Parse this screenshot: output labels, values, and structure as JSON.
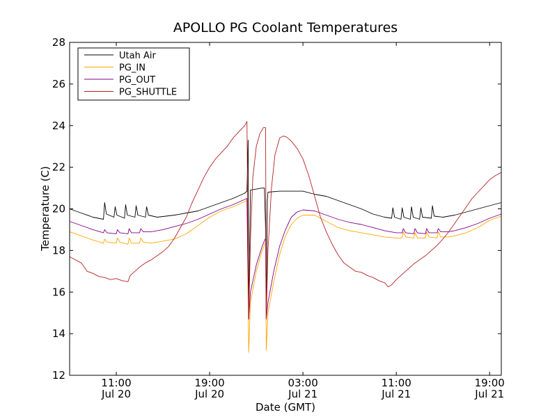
{
  "chart_data": {
    "type": "line",
    "title": "APOLLO PG Coolant Temperatures",
    "xlabel": "Date (GMT)",
    "ylabel": "Temperature (C)",
    "x_unit": "hours since Jul 20 06:00 GMT",
    "xlim": [
      0,
      37
    ],
    "ylim": [
      12,
      28
    ],
    "yticks": [
      12,
      14,
      16,
      18,
      20,
      22,
      24,
      26,
      28
    ],
    "xticks": [
      {
        "x": 4,
        "line1": "11:00",
        "line2": "Jul 20"
      },
      {
        "x": 12,
        "line1": "19:00",
        "line2": "Jul 20"
      },
      {
        "x": 20,
        "line1": "03:00",
        "line2": "Jul 21"
      },
      {
        "x": 28,
        "line1": "11:00",
        "line2": "Jul 21"
      },
      {
        "x": 36,
        "line1": "19:00",
        "line2": "Jul 21"
      }
    ],
    "legend_position": "top-left",
    "series": [
      {
        "name": "Utah Air",
        "color": "#000000",
        "points": [
          [
            0,
            20.0
          ],
          [
            1,
            19.8
          ],
          [
            2,
            19.6
          ],
          [
            2.9,
            19.5
          ],
          [
            3.0,
            20.3
          ],
          [
            3.15,
            19.75
          ],
          [
            3.8,
            19.6
          ],
          [
            3.9,
            20.1
          ],
          [
            4.05,
            19.7
          ],
          [
            4.7,
            19.55
          ],
          [
            4.8,
            20.2
          ],
          [
            4.95,
            19.7
          ],
          [
            5.6,
            19.6
          ],
          [
            5.7,
            20.15
          ],
          [
            5.85,
            19.7
          ],
          [
            6.5,
            19.6
          ],
          [
            6.6,
            20.1
          ],
          [
            6.75,
            19.7
          ],
          [
            7.5,
            19.6
          ],
          [
            9,
            19.7
          ],
          [
            10,
            19.8
          ],
          [
            11,
            19.9
          ],
          [
            12,
            20.1
          ],
          [
            13,
            20.3
          ],
          [
            14,
            20.5
          ],
          [
            15,
            20.75
          ],
          [
            15.2,
            20.85
          ],
          [
            15.3,
            23.3
          ],
          [
            15.35,
            14.7
          ],
          [
            15.5,
            20.9
          ],
          [
            16.5,
            21.0
          ],
          [
            16.7,
            21.0
          ],
          [
            16.8,
            19.0
          ],
          [
            16.85,
            14.7
          ],
          [
            16.95,
            20.4
          ],
          [
            17,
            20.8
          ],
          [
            18,
            20.85
          ],
          [
            19,
            20.85
          ],
          [
            20,
            20.85
          ],
          [
            21,
            20.7
          ],
          [
            22,
            20.6
          ],
          [
            23,
            20.4
          ],
          [
            24,
            20.2
          ],
          [
            25,
            20.0
          ],
          [
            26,
            19.75
          ],
          [
            27,
            19.6
          ],
          [
            27.6,
            19.55
          ],
          [
            27.7,
            20.05
          ],
          [
            27.85,
            19.6
          ],
          [
            28.4,
            19.5
          ],
          [
            28.5,
            20.05
          ],
          [
            28.65,
            19.6
          ],
          [
            29.2,
            19.5
          ],
          [
            29.3,
            20.1
          ],
          [
            29.45,
            19.6
          ],
          [
            30,
            19.5
          ],
          [
            30.1,
            20.05
          ],
          [
            30.25,
            19.6
          ],
          [
            31,
            19.55
          ],
          [
            31.1,
            20.15
          ],
          [
            31.25,
            19.65
          ],
          [
            32,
            19.6
          ],
          [
            33,
            19.7
          ],
          [
            34,
            19.85
          ],
          [
            35,
            20.0
          ],
          [
            36,
            20.15
          ],
          [
            37,
            20.3
          ]
        ]
      },
      {
        "name": "PG_IN",
        "color": "#FFA500",
        "points": [
          [
            0,
            18.9
          ],
          [
            1,
            18.7
          ],
          [
            2,
            18.5
          ],
          [
            2.9,
            18.35
          ],
          [
            3.0,
            18.55
          ],
          [
            3.2,
            18.4
          ],
          [
            4,
            18.35
          ],
          [
            4.1,
            18.6
          ],
          [
            4.3,
            18.4
          ],
          [
            5,
            18.3
          ],
          [
            5.1,
            18.6
          ],
          [
            5.3,
            18.35
          ],
          [
            6,
            18.35
          ],
          [
            6.1,
            18.6
          ],
          [
            6.3,
            18.4
          ],
          [
            7,
            18.35
          ],
          [
            8,
            18.45
          ],
          [
            9,
            18.55
          ],
          [
            10,
            18.8
          ],
          [
            11,
            19.2
          ],
          [
            12,
            19.6
          ],
          [
            13,
            19.9
          ],
          [
            14,
            20.1
          ],
          [
            15,
            20.35
          ],
          [
            15.2,
            20.4
          ],
          [
            15.35,
            13.1
          ],
          [
            15.5,
            15.5
          ],
          [
            16,
            17.0
          ],
          [
            16.5,
            18.0
          ],
          [
            16.8,
            18.4
          ],
          [
            16.85,
            13.2
          ],
          [
            17,
            15.0
          ],
          [
            17.5,
            16.5
          ],
          [
            18,
            17.8
          ],
          [
            18.5,
            18.7
          ],
          [
            19,
            19.25
          ],
          [
            19.5,
            19.55
          ],
          [
            20,
            19.7
          ],
          [
            21,
            19.7
          ],
          [
            22,
            19.4
          ],
          [
            23,
            19.1
          ],
          [
            24,
            18.95
          ],
          [
            25,
            18.85
          ],
          [
            26,
            18.75
          ],
          [
            27,
            18.65
          ],
          [
            28,
            18.6
          ],
          [
            28.5,
            18.6
          ],
          [
            28.6,
            18.9
          ],
          [
            28.8,
            18.65
          ],
          [
            29.5,
            18.6
          ],
          [
            29.6,
            18.85
          ],
          [
            29.8,
            18.6
          ],
          [
            30.5,
            18.6
          ],
          [
            30.6,
            18.9
          ],
          [
            30.8,
            18.65
          ],
          [
            31.5,
            18.6
          ],
          [
            31.6,
            18.9
          ],
          [
            31.8,
            18.65
          ],
          [
            32.5,
            18.65
          ],
          [
            33,
            18.7
          ],
          [
            34,
            18.85
          ],
          [
            35,
            19.1
          ],
          [
            36,
            19.45
          ],
          [
            37,
            19.65
          ]
        ]
      },
      {
        "name": "PG_OUT",
        "color": "#800080",
        "points": [
          [
            0,
            19.4
          ],
          [
            1,
            19.2
          ],
          [
            2,
            19.0
          ],
          [
            2.9,
            18.85
          ],
          [
            3.0,
            19.0
          ],
          [
            3.2,
            18.85
          ],
          [
            4,
            18.8
          ],
          [
            4.1,
            19.0
          ],
          [
            4.3,
            18.85
          ],
          [
            5,
            18.8
          ],
          [
            5.1,
            19.05
          ],
          [
            5.3,
            18.85
          ],
          [
            6,
            18.85
          ],
          [
            6.1,
            19.05
          ],
          [
            6.3,
            18.9
          ],
          [
            7,
            18.9
          ],
          [
            8,
            19.0
          ],
          [
            9,
            19.15
          ],
          [
            10,
            19.3
          ],
          [
            11,
            19.5
          ],
          [
            12,
            19.75
          ],
          [
            13,
            20.0
          ],
          [
            14,
            20.2
          ],
          [
            15,
            20.45
          ],
          [
            15.2,
            20.5
          ],
          [
            15.35,
            14.7
          ],
          [
            15.5,
            16.0
          ],
          [
            16,
            17.3
          ],
          [
            16.5,
            18.2
          ],
          [
            16.8,
            18.6
          ],
          [
            16.85,
            14.7
          ],
          [
            17,
            15.5
          ],
          [
            17.5,
            17.0
          ],
          [
            18,
            18.2
          ],
          [
            18.5,
            19.0
          ],
          [
            19,
            19.6
          ],
          [
            19.5,
            19.85
          ],
          [
            20,
            19.95
          ],
          [
            21,
            19.9
          ],
          [
            22,
            19.7
          ],
          [
            23,
            19.5
          ],
          [
            24,
            19.35
          ],
          [
            25,
            19.25
          ],
          [
            26,
            19.1
          ],
          [
            27,
            18.95
          ],
          [
            28,
            18.85
          ],
          [
            28.5,
            18.85
          ],
          [
            28.6,
            19.05
          ],
          [
            28.8,
            18.85
          ],
          [
            29.5,
            18.8
          ],
          [
            29.6,
            19.05
          ],
          [
            29.8,
            18.85
          ],
          [
            30.5,
            18.8
          ],
          [
            30.6,
            19.05
          ],
          [
            30.8,
            18.85
          ],
          [
            31.5,
            18.85
          ],
          [
            31.6,
            19.05
          ],
          [
            31.8,
            18.9
          ],
          [
            32.5,
            18.9
          ],
          [
            33,
            18.95
          ],
          [
            34,
            19.1
          ],
          [
            35,
            19.3
          ],
          [
            36,
            19.55
          ],
          [
            37,
            19.75
          ]
        ]
      },
      {
        "name": "PG_SHUTTLE",
        "color": "#B22222",
        "points": [
          [
            0,
            17.7
          ],
          [
            1,
            17.4
          ],
          [
            1.5,
            17.0
          ],
          [
            2,
            16.9
          ],
          [
            2.5,
            16.75
          ],
          [
            3,
            16.7
          ],
          [
            3.5,
            16.6
          ],
          [
            4,
            16.65
          ],
          [
            4.5,
            16.55
          ],
          [
            5,
            16.5
          ],
          [
            5.2,
            16.8
          ],
          [
            5.5,
            16.95
          ],
          [
            6,
            17.2
          ],
          [
            6.5,
            17.4
          ],
          [
            7,
            17.55
          ],
          [
            7.5,
            17.75
          ],
          [
            8,
            17.95
          ],
          [
            8.5,
            18.2
          ],
          [
            9,
            18.6
          ],
          [
            9.5,
            19.1
          ],
          [
            10,
            19.6
          ],
          [
            10.5,
            20.3
          ],
          [
            11,
            20.9
          ],
          [
            11.5,
            21.5
          ],
          [
            12,
            22.0
          ],
          [
            12.5,
            22.4
          ],
          [
            13,
            22.7
          ],
          [
            13.5,
            23.0
          ],
          [
            14,
            23.4
          ],
          [
            14.5,
            23.7
          ],
          [
            15,
            24.0
          ],
          [
            15.2,
            24.2
          ],
          [
            15.35,
            14.7
          ],
          [
            15.5,
            18.5
          ],
          [
            15.7,
            21.5
          ],
          [
            16,
            23.0
          ],
          [
            16.3,
            23.6
          ],
          [
            16.6,
            23.9
          ],
          [
            16.8,
            23.9
          ],
          [
            16.85,
            14.7
          ],
          [
            17.0,
            18.0
          ],
          [
            17.3,
            21.0
          ],
          [
            17.6,
            22.6
          ],
          [
            18,
            23.4
          ],
          [
            18.3,
            23.5
          ],
          [
            18.6,
            23.45
          ],
          [
            19,
            23.25
          ],
          [
            19.5,
            22.9
          ],
          [
            20,
            22.4
          ],
          [
            20.5,
            21.6
          ],
          [
            21,
            20.6
          ],
          [
            21.5,
            19.6
          ],
          [
            22,
            18.9
          ],
          [
            22.5,
            18.3
          ],
          [
            23,
            17.8
          ],
          [
            23.5,
            17.4
          ],
          [
            24,
            17.2
          ],
          [
            24.5,
            17.0
          ],
          [
            25,
            16.95
          ],
          [
            25.5,
            16.8
          ],
          [
            26,
            16.7
          ],
          [
            26.5,
            16.55
          ],
          [
            27,
            16.45
          ],
          [
            27.3,
            16.25
          ],
          [
            27.6,
            16.35
          ],
          [
            28,
            16.6
          ],
          [
            28.5,
            16.85
          ],
          [
            29,
            17.1
          ],
          [
            29.5,
            17.35
          ],
          [
            30,
            17.55
          ],
          [
            30.5,
            17.75
          ],
          [
            31,
            18.0
          ],
          [
            31.5,
            18.25
          ],
          [
            32,
            18.55
          ],
          [
            32.5,
            18.9
          ],
          [
            33,
            19.3
          ],
          [
            33.5,
            19.7
          ],
          [
            34,
            20.1
          ],
          [
            34.5,
            20.5
          ],
          [
            35,
            20.8
          ],
          [
            35.5,
            21.1
          ],
          [
            36,
            21.4
          ],
          [
            36.5,
            21.6
          ],
          [
            37,
            21.75
          ]
        ]
      }
    ]
  }
}
